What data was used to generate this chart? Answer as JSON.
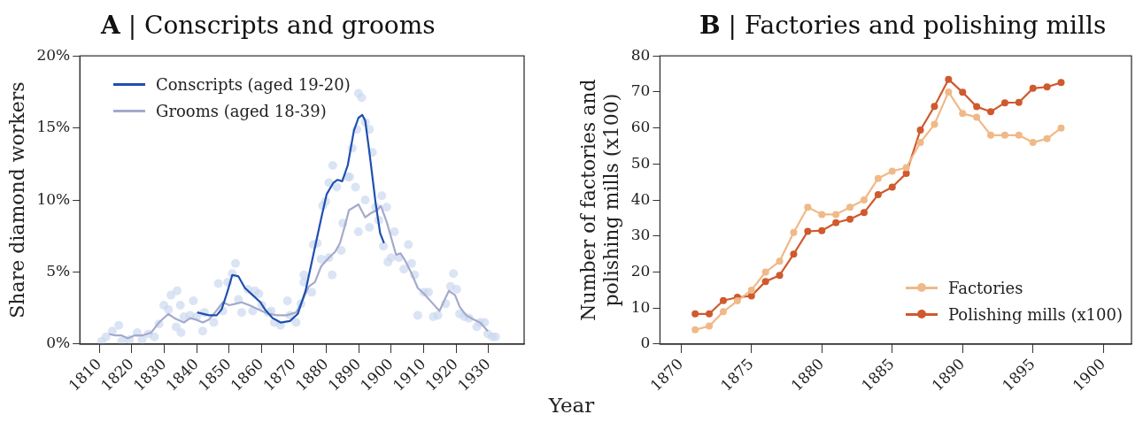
{
  "chart_data": [
    {
      "type": "line",
      "title": "A | Conscripts and grooms",
      "xlabel": "Year",
      "ylabel": "Share diamond workers",
      "xlim": [
        1804,
        1941
      ],
      "xticks": [
        1810,
        1820,
        1830,
        1840,
        1850,
        1860,
        1870,
        1880,
        1890,
        1900,
        1910,
        1920,
        1930
      ],
      "ylim": [
        0,
        20
      ],
      "yticks": [
        {
          "value": 0,
          "label": "0%"
        },
        {
          "value": 5,
          "label": "5%"
        },
        {
          "value": 10,
          "label": "10%"
        },
        {
          "value": 15,
          "label": "15%"
        },
        {
          "value": 20,
          "label": "20%"
        }
      ],
      "grid": false,
      "legend": "top left",
      "series": [
        {
          "type": "scatter",
          "color": "#c8d6ef",
          "marker": "circle",
          "x": [
            1810.7,
            1812.1,
            1814.0,
            1816.0,
            1816.9,
            1819.3,
            1821.7,
            1823.2,
            1825.1,
            1827.0,
            1828.4,
            1829.9,
            1831.3,
            1832.1,
            1834.0,
            1833.7,
            1835.2,
            1835.0,
            1836.1,
            1838.0,
            1839.0,
            1840.0,
            1841.9,
            1842.4,
            1845.3,
            1846.7,
            1848.1,
            1849.6,
            1851.0,
            1852.0,
            1852.9,
            1853.9,
            1855.8,
            1857.3,
            1858.0,
            1859.2,
            1860.1,
            1862.1,
            1863.0,
            1864.0,
            1865.9,
            1868.0,
            1868.8,
            1870.7,
            1872.2,
            1873.1,
            1873.1,
            1875.5,
            1876.0,
            1877.2,
            1878.4,
            1878.9,
            1879.8,
            1880.8,
            1881.8,
            1882.0,
            1880.8,
            1883.2,
            1884.6,
            1885.1,
            1886.6,
            1887.2,
            1888.0,
            1889.0,
            1889.4,
            1889.9,
            1889.9,
            1890.9,
            1892.0,
            1892.0,
            1893.3,
            1893.3,
            1894.2,
            1895.2,
            1896.2,
            1897.1,
            1897.6,
            1898.6,
            1899.0,
            1900.0,
            1901.0,
            1902.4,
            1903.9,
            1905.3,
            1906.3,
            1907.2,
            1908.2,
            1910.1,
            1911.5,
            1913.0,
            1914.4,
            1916.8,
            1918.3,
            1919.2,
            1920.2,
            1921.1,
            1922.6,
            1924.0,
            1926.4,
            1927.4,
            1928.8,
            1929.8,
            1931.2,
            1932.2
          ],
          "values": [
            0.2,
            0.5,
            0.9,
            1.3,
            0.2,
            0.3,
            0.8,
            0.3,
            0.7,
            0.5,
            1.4,
            2.7,
            2.4,
            3.4,
            3.7,
            1.2,
            0.8,
            2.7,
            1.9,
            2.0,
            3.0,
            1.9,
            0.9,
            2.2,
            1.5,
            4.2,
            2.3,
            4.3,
            4.9,
            5.6,
            3.1,
            2.2,
            3.8,
            2.3,
            3.7,
            3.5,
            2.7,
            2.2,
            2.3,
            1.5,
            1.3,
            3.0,
            2.0,
            1.5,
            2.8,
            4.8,
            4.3,
            3.6,
            6.9,
            7.0,
            5.9,
            9.6,
            9.9,
            6.0,
            4.8,
            12.4,
            11.2,
            10.9,
            6.5,
            8.4,
            11.6,
            11.6,
            13.6,
            10.9,
            14.9,
            7.8,
            17.4,
            17.1,
            15.4,
            10.0,
            14.9,
            8.1,
            13.3,
            9.5,
            8.6,
            10.3,
            6.8,
            9.5,
            5.7,
            6.0,
            7.8,
            6.0,
            5.2,
            6.9,
            5.6,
            4.8,
            2.0,
            3.6,
            3.6,
            1.9,
            2.0,
            2.8,
            4.0,
            4.9,
            3.8,
            2.1,
            1.9,
            1.8,
            1.2,
            1.5,
            1.5,
            0.7,
            0.5,
            0.5
          ]
        },
        {
          "name": "Conscripts (aged 19-20)",
          "color": "#1f4fb0",
          "marker": "none",
          "x": [
            1840.2,
            1843.8,
            1846.2,
            1847.7,
            1849.6,
            1851.0,
            1852.9,
            1854.9,
            1857.3,
            1859.7,
            1861.1,
            1863.5,
            1865.9,
            1868.8,
            1871.2,
            1873.6,
            1876.0,
            1878.4,
            1880.1,
            1882.2,
            1883.4,
            1884.9,
            1886.6,
            1888.5,
            1889.9,
            1891.1,
            1892.0,
            1893.3,
            1895.2,
            1896.6,
            1897.8
          ],
          "values": [
            2.2,
            2.0,
            2.0,
            2.4,
            3.7,
            4.8,
            4.7,
            3.9,
            3.4,
            2.9,
            2.4,
            1.8,
            1.5,
            1.6,
            2.1,
            3.7,
            6.2,
            8.7,
            10.4,
            11.2,
            11.4,
            11.3,
            12.4,
            14.8,
            15.7,
            15.9,
            15.5,
            13.3,
            9.8,
            7.7,
            7.0
          ]
        },
        {
          "name": "Grooms (aged 18-39)",
          "color": "#a4a9cc",
          "marker": "none",
          "x": [
            1813.1,
            1815.0,
            1816.9,
            1818.8,
            1820.8,
            1823.2,
            1826.0,
            1828.4,
            1831.3,
            1833.2,
            1836.1,
            1838.0,
            1839.8,
            1841.9,
            1843.8,
            1845.7,
            1848.1,
            1850.1,
            1852.0,
            1853.9,
            1856.3,
            1859.2,
            1862.1,
            1864.9,
            1867.8,
            1870.7,
            1872.6,
            1874.6,
            1876.5,
            1878.4,
            1880.8,
            1882.7,
            1884.2,
            1885.6,
            1887.0,
            1888.5,
            1889.9,
            1892.0,
            1893.8,
            1895.7,
            1896.8,
            1898.6,
            1900.0,
            1901.5,
            1902.9,
            1904.3,
            1906.3,
            1908.2,
            1910.1,
            1912.1,
            1914.9,
            1916.3,
            1917.8,
            1919.7,
            1921.1,
            1923.1,
            1925.5,
            1927.4,
            1929.8
          ],
          "values": [
            0.7,
            0.6,
            0.6,
            0.4,
            0.6,
            0.6,
            0.8,
            1.5,
            2.1,
            1.8,
            1.5,
            1.8,
            1.7,
            1.5,
            1.7,
            2.2,
            2.9,
            2.7,
            2.8,
            2.9,
            2.7,
            2.4,
            2.1,
            2.0,
            2.0,
            2.2,
            3.0,
            4.0,
            4.3,
            5.4,
            6.0,
            6.4,
            7.0,
            8.1,
            9.3,
            9.5,
            9.7,
            8.8,
            9.1,
            9.3,
            9.6,
            8.5,
            7.4,
            6.2,
            6.3,
            5.8,
            4.9,
            3.9,
            3.5,
            3.0,
            2.3,
            3.0,
            3.7,
            3.4,
            2.6,
            2.0,
            1.7,
            1.5,
            0.9
          ]
        }
      ]
    },
    {
      "type": "line",
      "title": "B | Factories and polishing mills",
      "ylabel": "Number of factories and\npolishing mills (x100)",
      "xlim": [
        1868.5,
        1902
      ],
      "xticks": [
        1870,
        1875,
        1880,
        1885,
        1890,
        1895,
        1900
      ],
      "ylim": [
        0,
        80
      ],
      "yticks": [
        0,
        10,
        20,
        30,
        40,
        50,
        60,
        70,
        80
      ],
      "grid": false,
      "legend": "bottom right",
      "marker": "circle",
      "x": [
        1871,
        1872,
        1873,
        1874,
        1875,
        1876,
        1877,
        1878,
        1879,
        1880,
        1881,
        1882,
        1883,
        1884,
        1885,
        1886,
        1887,
        1888,
        1889,
        1890,
        1891,
        1892,
        1893,
        1894,
        1895,
        1896,
        1897
      ],
      "series": [
        {
          "name": "Factories",
          "color": "#f0b987",
          "values": [
            4,
            5,
            9,
            12,
            15,
            20,
            23,
            31,
            38,
            36,
            36,
            38,
            40,
            46,
            48,
            49,
            56,
            61,
            70,
            64,
            63,
            58,
            58,
            58,
            56,
            57,
            60
          ]
        },
        {
          "name": "Polishing mills (x100)",
          "color": "#cf5a2e",
          "values": [
            8.4,
            8.4,
            12.1,
            13,
            13.4,
            17.4,
            19.1,
            25,
            31.3,
            31.5,
            33.7,
            34.7,
            36.5,
            41.5,
            43.6,
            47.4,
            59.4,
            66,
            73.5,
            69.9,
            65.9,
            64.5,
            67,
            67.1,
            71,
            71.4,
            72.6
          ]
        }
      ]
    }
  ]
}
